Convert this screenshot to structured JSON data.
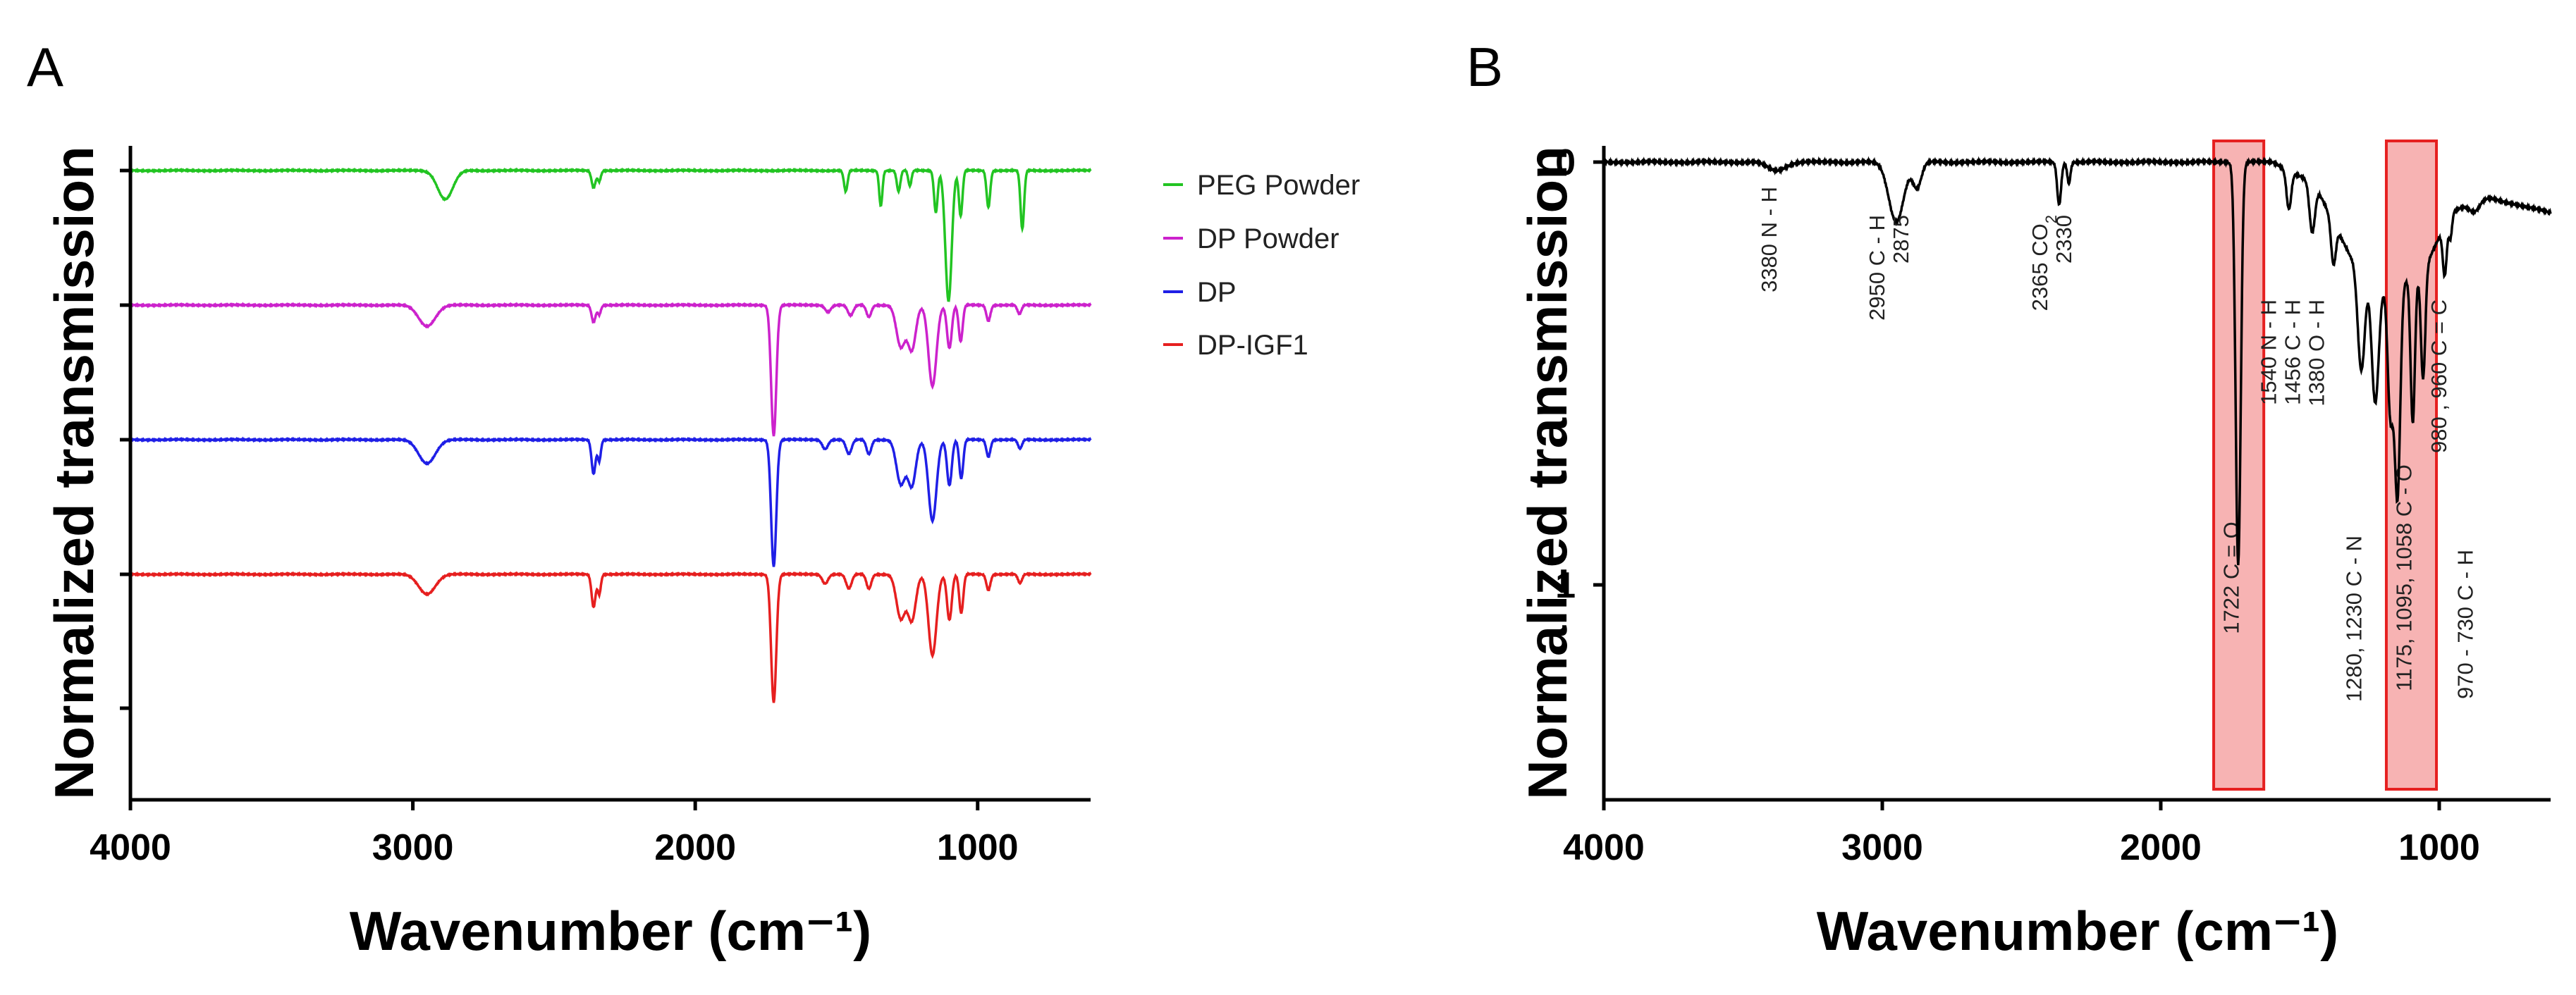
{
  "chart_data": [
    {
      "panel_label": "A",
      "type": "line",
      "xlabel": "Wavenumber (cm⁻¹)",
      "ylabel": "Normalized transmission",
      "xlim": [
        4000,
        600
      ],
      "x_reversed": true,
      "x_ticks": [
        4000,
        3000,
        2000,
        1000
      ],
      "y_ticks_labeled": false,
      "grid": false,
      "legend_position": "right",
      "series": [
        {
          "name": "PEG Powder",
          "color": "#22c422",
          "baseline": 0,
          "peaks": [
            {
              "x": 2885,
              "depth": 0.22,
              "width": 38
            },
            {
              "x": 2360,
              "depth": 0.13,
              "width": 10
            },
            {
              "x": 2340,
              "depth": 0.08,
              "width": 8
            },
            {
              "x": 1467,
              "depth": 0.16,
              "width": 9
            },
            {
              "x": 1343,
              "depth": 0.27,
              "width": 8
            },
            {
              "x": 1280,
              "depth": 0.16,
              "width": 9
            },
            {
              "x": 1240,
              "depth": 0.12,
              "width": 8
            },
            {
              "x": 1148,
              "depth": 0.32,
              "width": 9
            },
            {
              "x": 1103,
              "depth": 1.0,
              "width": 16
            },
            {
              "x": 1060,
              "depth": 0.35,
              "width": 9
            },
            {
              "x": 962,
              "depth": 0.28,
              "width": 9
            },
            {
              "x": 842,
              "depth": 0.45,
              "width": 9
            }
          ]
        },
        {
          "name": "DP Powder",
          "color": "#cc22cc",
          "baseline": 1,
          "peaks": [
            {
              "x": 2950,
              "depth": 0.16,
              "width": 42
            },
            {
              "x": 2360,
              "depth": 0.13,
              "width": 10
            },
            {
              "x": 2340,
              "depth": 0.07,
              "width": 8
            },
            {
              "x": 1722,
              "depth": 1.0,
              "width": 13
            },
            {
              "x": 1530,
              "depth": 0.05,
              "width": 14
            },
            {
              "x": 1450,
              "depth": 0.08,
              "width": 14
            },
            {
              "x": 1385,
              "depth": 0.09,
              "width": 12
            },
            {
              "x": 1272,
              "depth": 0.32,
              "width": 22
            },
            {
              "x": 1233,
              "depth": 0.34,
              "width": 20
            },
            {
              "x": 1160,
              "depth": 0.62,
              "width": 20
            },
            {
              "x": 1100,
              "depth": 0.33,
              "width": 12
            },
            {
              "x": 1060,
              "depth": 0.28,
              "width": 10
            },
            {
              "x": 962,
              "depth": 0.12,
              "width": 10
            },
            {
              "x": 852,
              "depth": 0.07,
              "width": 10
            }
          ]
        },
        {
          "name": "DP",
          "color": "#1f1fe6",
          "baseline": 2,
          "peaks": [
            {
              "x": 2950,
              "depth": 0.18,
              "width": 42
            },
            {
              "x": 2360,
              "depth": 0.26,
              "width": 10
            },
            {
              "x": 2340,
              "depth": 0.16,
              "width": 8
            },
            {
              "x": 1722,
              "depth": 0.97,
              "width": 13
            },
            {
              "x": 1540,
              "depth": 0.07,
              "width": 14
            },
            {
              "x": 1456,
              "depth": 0.11,
              "width": 14
            },
            {
              "x": 1385,
              "depth": 0.11,
              "width": 12
            },
            {
              "x": 1272,
              "depth": 0.34,
              "width": 22
            },
            {
              "x": 1233,
              "depth": 0.35,
              "width": 20
            },
            {
              "x": 1160,
              "depth": 0.62,
              "width": 20
            },
            {
              "x": 1100,
              "depth": 0.35,
              "width": 12
            },
            {
              "x": 1058,
              "depth": 0.3,
              "width": 10
            },
            {
              "x": 962,
              "depth": 0.13,
              "width": 10
            },
            {
              "x": 850,
              "depth": 0.07,
              "width": 10
            }
          ]
        },
        {
          "name": "DP-IGF1",
          "color": "#e61f1f",
          "baseline": 3,
          "peaks": [
            {
              "x": 2950,
              "depth": 0.15,
              "width": 42
            },
            {
              "x": 2360,
              "depth": 0.25,
              "width": 10
            },
            {
              "x": 2340,
              "depth": 0.15,
              "width": 8
            },
            {
              "x": 1722,
              "depth": 0.98,
              "width": 13
            },
            {
              "x": 1540,
              "depth": 0.07,
              "width": 14
            },
            {
              "x": 1456,
              "depth": 0.11,
              "width": 14
            },
            {
              "x": 1385,
              "depth": 0.11,
              "width": 12
            },
            {
              "x": 1272,
              "depth": 0.34,
              "width": 22
            },
            {
              "x": 1233,
              "depth": 0.35,
              "width": 20
            },
            {
              "x": 1160,
              "depth": 0.62,
              "width": 20
            },
            {
              "x": 1100,
              "depth": 0.35,
              "width": 12
            },
            {
              "x": 1058,
              "depth": 0.3,
              "width": 10
            },
            {
              "x": 962,
              "depth": 0.12,
              "width": 10
            },
            {
              "x": 850,
              "depth": 0.07,
              "width": 10
            }
          ]
        }
      ]
    },
    {
      "panel_label": "B",
      "type": "line",
      "xlabel": "Wavenumber (cm⁻¹)",
      "ylabel": "Normalized transmission",
      "xlim": [
        4000,
        600
      ],
      "x_reversed": true,
      "x_ticks": [
        4000,
        3000,
        2000,
        1000
      ],
      "ylim": [
        0,
        1.5
      ],
      "y_reversed": true,
      "y_ticks": [
        0,
        1
      ],
      "grid": false,
      "color": "#000000",
      "series": [
        {
          "name": "",
          "color": "#000000",
          "peaks": [
            {
              "x": 3380,
              "depth": 0.02,
              "width": 45
            },
            {
              "x": 2950,
              "depth": 0.14,
              "width": 38
            },
            {
              "x": 2875,
              "depth": 0.06,
              "width": 22
            },
            {
              "x": 2365,
              "depth": 0.1,
              "width": 10
            },
            {
              "x": 2330,
              "depth": 0.05,
              "width": 8
            },
            {
              "x": 1722,
              "depth": 0.95,
              "width": 13
            },
            {
              "x": 1540,
              "depth": 0.09,
              "width": 12
            },
            {
              "x": 1456,
              "depth": 0.12,
              "width": 14
            },
            {
              "x": 1380,
              "depth": 0.1,
              "width": 12
            },
            {
              "x": 1280,
              "depth": 0.25,
              "width": 18
            },
            {
              "x": 1230,
              "depth": 0.3,
              "width": 18
            },
            {
              "x": 1175,
              "depth": 0.3,
              "width": 14
            },
            {
              "x": 1150,
              "depth": 0.5,
              "width": 14
            },
            {
              "x": 1095,
              "depth": 0.35,
              "width": 11
            },
            {
              "x": 1058,
              "depth": 0.26,
              "width": 11
            },
            {
              "x": 980,
              "depth": 0.12,
              "width": 10
            },
            {
              "x": 960,
              "depth": 0.06,
              "width": 8
            },
            {
              "x": 870,
              "depth": 0.03,
              "width": 30
            }
          ],
          "drift": [
            {
              "x": 1600,
              "y": 0
            },
            {
              "x": 1450,
              "y": 0.05
            },
            {
              "x": 1320,
              "y": 0.22
            },
            {
              "x": 1180,
              "y": 0.3
            },
            {
              "x": 1050,
              "y": 0.25
            },
            {
              "x": 960,
              "y": 0.12
            },
            {
              "x": 850,
              "y": 0.08
            },
            {
              "x": 600,
              "y": 0.12
            }
          ]
        }
      ],
      "highlight_regions": [
        {
          "x_range": [
            1810,
            1630
          ],
          "label": "1722 C = O"
        },
        {
          "x_range": [
            1190,
            1010
          ],
          "label": "1175, 1095, 1058 C - O"
        }
      ],
      "highlight_color": "#f7b3b3",
      "highlight_border_color": "#e62020",
      "annotations": [
        {
          "x": 3380,
          "lines": [
            "3380 N - H"
          ]
        },
        {
          "x": 2950,
          "lines": [
            "2950 C - H",
            "2875"
          ]
        },
        {
          "x": 2365,
          "lines": [
            "2365 CO",
            "2330"
          ],
          "subscript": "2"
        },
        {
          "x": 1500,
          "lines": [
            "1540 N - H",
            "1456 C - H",
            "1380 O - H"
          ]
        },
        {
          "x": 1280,
          "lines": [
            "1280, 1230 C - N"
          ]
        },
        {
          "x": 975,
          "lines": [
            "980 , 960 C = C"
          ]
        },
        {
          "x": 880,
          "lines": [
            "970 - 730 C - H"
          ]
        }
      ]
    }
  ]
}
